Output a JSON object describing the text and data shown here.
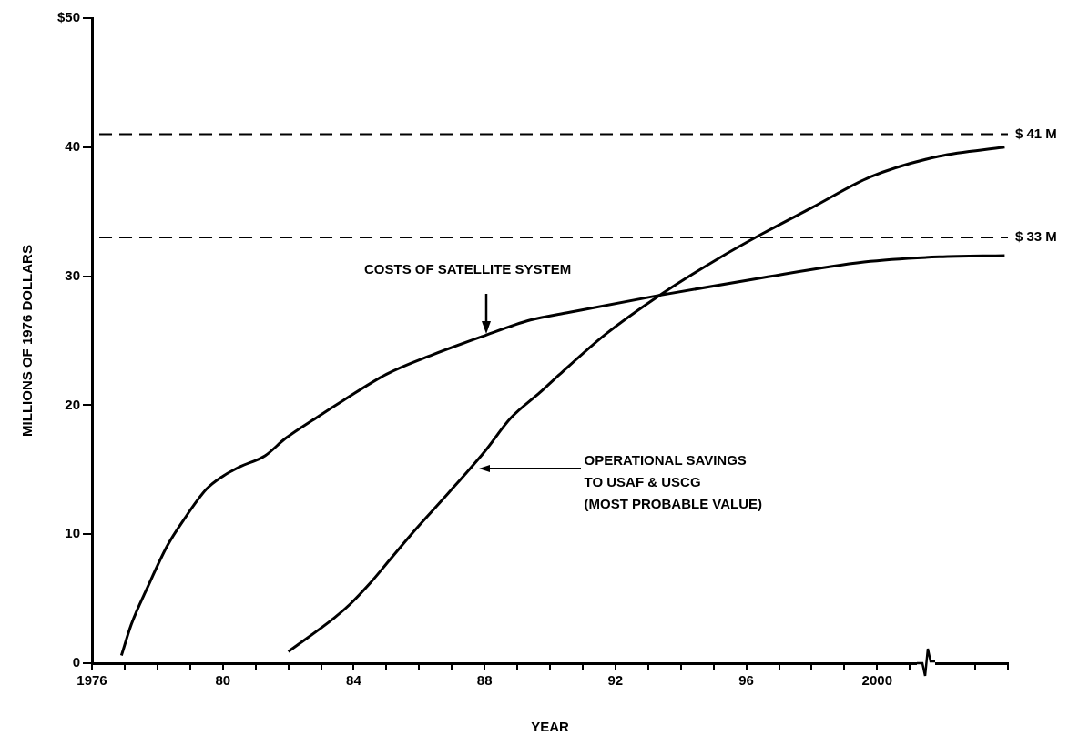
{
  "chart_data": {
    "type": "line",
    "xlabel": "YEAR",
    "ylabel": "MILLIONS OF 1976 DOLLARS",
    "xlim": [
      1976,
      2004
    ],
    "ylim": [
      0,
      50
    ],
    "xticks": [
      1976,
      {
        "value": 1977,
        "label": null
      },
      {
        "value": 1978,
        "label": null
      },
      {
        "value": 1979,
        "label": null
      },
      {
        "value": 1980,
        "label": "80"
      },
      {
        "value": 1981,
        "label": null
      },
      {
        "value": 1982,
        "label": null
      },
      {
        "value": 1983,
        "label": null
      },
      {
        "value": 1984,
        "label": "84"
      },
      {
        "value": 1985,
        "label": null
      },
      {
        "value": 1986,
        "label": null
      },
      {
        "value": 1987,
        "label": null
      },
      {
        "value": 1988,
        "label": "88"
      },
      {
        "value": 1989,
        "label": null
      },
      {
        "value": 1990,
        "label": null
      },
      {
        "value": 1991,
        "label": null
      },
      {
        "value": 1992,
        "label": "92"
      },
      {
        "value": 1993,
        "label": null
      },
      {
        "value": 1994,
        "label": null
      },
      {
        "value": 1995,
        "label": null
      },
      {
        "value": 1996,
        "label": "96"
      },
      {
        "value": 1997,
        "label": null
      },
      {
        "value": 1998,
        "label": null
      },
      {
        "value": 1999,
        "label": null
      },
      2000,
      {
        "value": 2001,
        "label": null
      },
      {
        "value": 2003,
        "label": null
      },
      {
        "value": 2004,
        "label": null
      }
    ],
    "yticks": [
      0,
      10,
      20,
      30,
      40,
      {
        "value": 50,
        "label": "$50"
      }
    ],
    "grid": false,
    "legend": false,
    "marker": "none",
    "line_style": "solid",
    "series": [
      {
        "color": "#000000",
        "x": [
          1976.9,
          1977.2,
          1977.7,
          1978.3,
          1978.8,
          1979.5,
          1980,
          1980.5,
          1981.3,
          1981.9,
          1982.9,
          1983.7,
          1985,
          1986.4,
          1987.9,
          1989.4,
          1990.6,
          1993.3,
          1996.3,
          1999.6,
          2001.9,
          2003.9
        ],
        "values": [
          0.6,
          3,
          5.9,
          9.1,
          11.1,
          13.5,
          14.5,
          15.2,
          16.1,
          17.4,
          19.1,
          20.4,
          22.4,
          23.9,
          25.3,
          26.6,
          27.2,
          28.5,
          29.8,
          31.1,
          31.5,
          31.6
        ]
      },
      {
        "color": "#000000",
        "x": [
          1982,
          1983.4,
          1983.9,
          1984.5,
          1985.1,
          1985.8,
          1986.9,
          1988,
          1988.8,
          1989.7,
          1990.3,
          1991.7,
          1993.4,
          1995.1,
          1996.5,
          1998,
          1999.8,
          2001.9,
          2003.9
        ],
        "values": [
          0.9,
          3.5,
          4.6,
          6.2,
          8,
          10.1,
          13.2,
          16.4,
          19,
          21,
          22.4,
          25.5,
          28.6,
          31.3,
          33.3,
          35.3,
          37.7,
          39.3,
          40
        ]
      }
    ],
    "ref_lines": [
      {
        "axis": "y",
        "value": 41,
        "label": "$ 41 M",
        "line_style": "dashed",
        "color": "#000000"
      },
      {
        "axis": "y",
        "value": 33,
        "label": "$ 33 M",
        "line_style": "dashed",
        "color": "#000000"
      }
    ],
    "annotations": [
      "COSTS OF SATELLITE SYSTEM",
      "OPERATIONAL SAVINGS\nTO USAF & USCG\n(MOST PROBABLE VALUE)"
    ]
  }
}
